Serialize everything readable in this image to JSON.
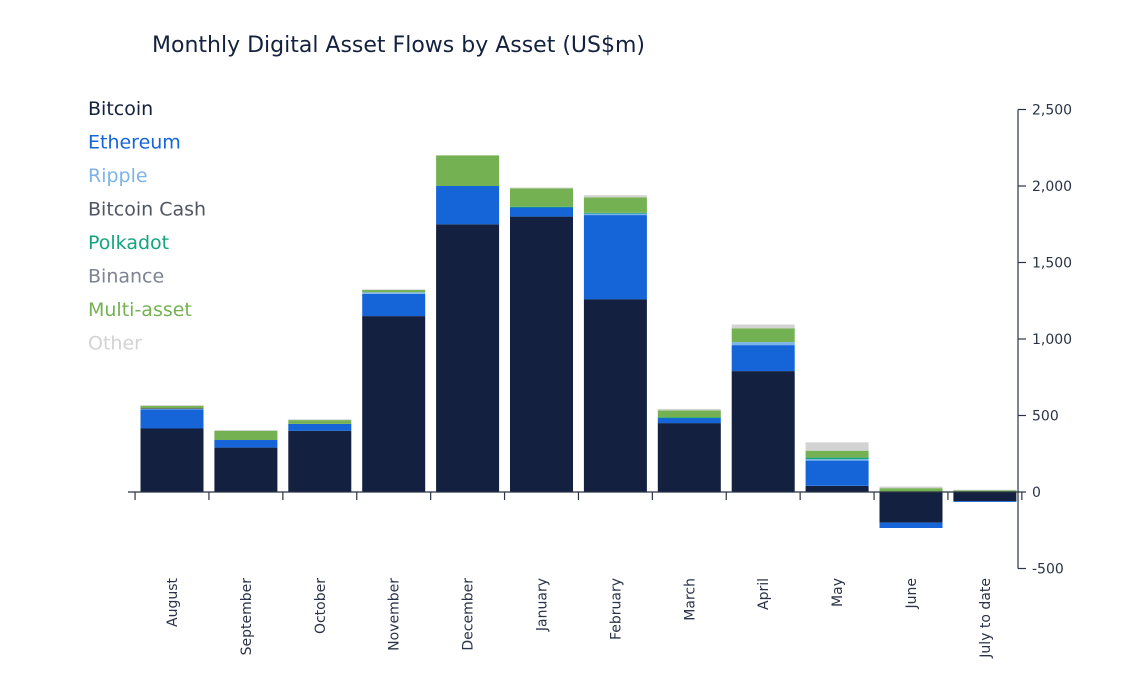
{
  "chart_data": {
    "type": "bar",
    "stacked": true,
    "title": "Monthly Digital Asset Flows by Asset (US$m)",
    "xlabel": "",
    "ylabel": "",
    "ylim": [
      -500,
      2500
    ],
    "yticks": [
      2500,
      2000,
      1500,
      1000,
      500,
      0,
      -500
    ],
    "ytick_labels": [
      "2,500",
      "2,000",
      "1,500",
      "1,000",
      "500",
      "0",
      "-500"
    ],
    "y_axis_position": "right",
    "legend_position": "top-left",
    "grid": false,
    "categories": [
      "August",
      "September",
      "October",
      "November",
      "December",
      "January",
      "February",
      "March",
      "April",
      "May",
      "June",
      "July to date"
    ],
    "series": [
      {
        "name": "Bitcoin",
        "color": "#13203f",
        "values": [
          415,
          290,
          400,
          1150,
          1750,
          1800,
          1260,
          450,
          790,
          40,
          -200,
          -60
        ]
      },
      {
        "name": "Ethereum",
        "color": "#1565d8",
        "values": [
          125,
          50,
          45,
          145,
          250,
          60,
          550,
          35,
          170,
          165,
          -35,
          -5
        ]
      },
      {
        "name": "Ripple",
        "color": "#7cb4ea",
        "values": [
          5,
          0,
          0,
          10,
          0,
          0,
          10,
          0,
          20,
          10,
          0,
          0
        ]
      },
      {
        "name": "Bitcoin Cash",
        "color": "#4f5562",
        "values": [
          3,
          0,
          0,
          0,
          0,
          0,
          0,
          0,
          0,
          0,
          0,
          0
        ]
      },
      {
        "name": "Polkadot",
        "color": "#13a37f",
        "values": [
          0,
          0,
          0,
          0,
          0,
          5,
          5,
          3,
          0,
          10,
          0,
          0
        ]
      },
      {
        "name": "Binance",
        "color": "#7d8392",
        "values": [
          0,
          0,
          0,
          0,
          0,
          0,
          0,
          0,
          0,
          0,
          0,
          0
        ]
      },
      {
        "name": "Multi-asset",
        "color": "#74b152",
        "values": [
          15,
          60,
          25,
          15,
          200,
          120,
          100,
          45,
          90,
          45,
          25,
          10
        ]
      },
      {
        "name": "Other",
        "color": "#d3d3d3",
        "values": [
          5,
          5,
          5,
          5,
          0,
          5,
          15,
          10,
          25,
          55,
          10,
          5
        ]
      }
    ]
  }
}
